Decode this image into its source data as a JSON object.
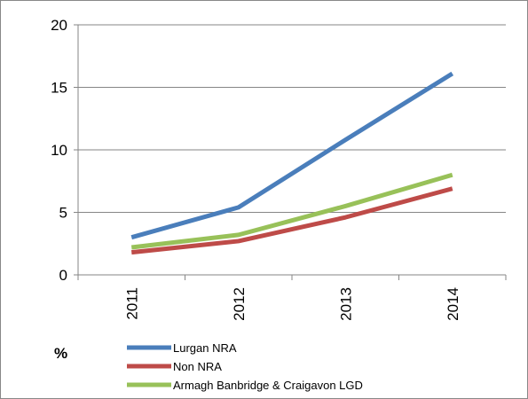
{
  "chart_data": {
    "type": "line",
    "title": "",
    "xlabel": "",
    "ylabel": "",
    "unit_label": "%",
    "categories": [
      "2011",
      "2012",
      "2013",
      "2014"
    ],
    "ylim": [
      0,
      20
    ],
    "yticks": [
      0,
      5,
      10,
      15,
      20
    ],
    "grid": true,
    "legend_position": "bottom",
    "series": [
      {
        "name": "Lurgan NRA",
        "values": [
          3.0,
          5.4,
          10.8,
          16.1
        ],
        "color": "#4a7ebb"
      },
      {
        "name": "Non NRA",
        "values": [
          1.8,
          2.7,
          4.6,
          6.9
        ],
        "color": "#be4b48"
      },
      {
        "name": "Armagh Banbridge & Craigavon LGD",
        "values": [
          2.2,
          3.2,
          5.5,
          8.0
        ],
        "color": "#98c159"
      }
    ]
  }
}
